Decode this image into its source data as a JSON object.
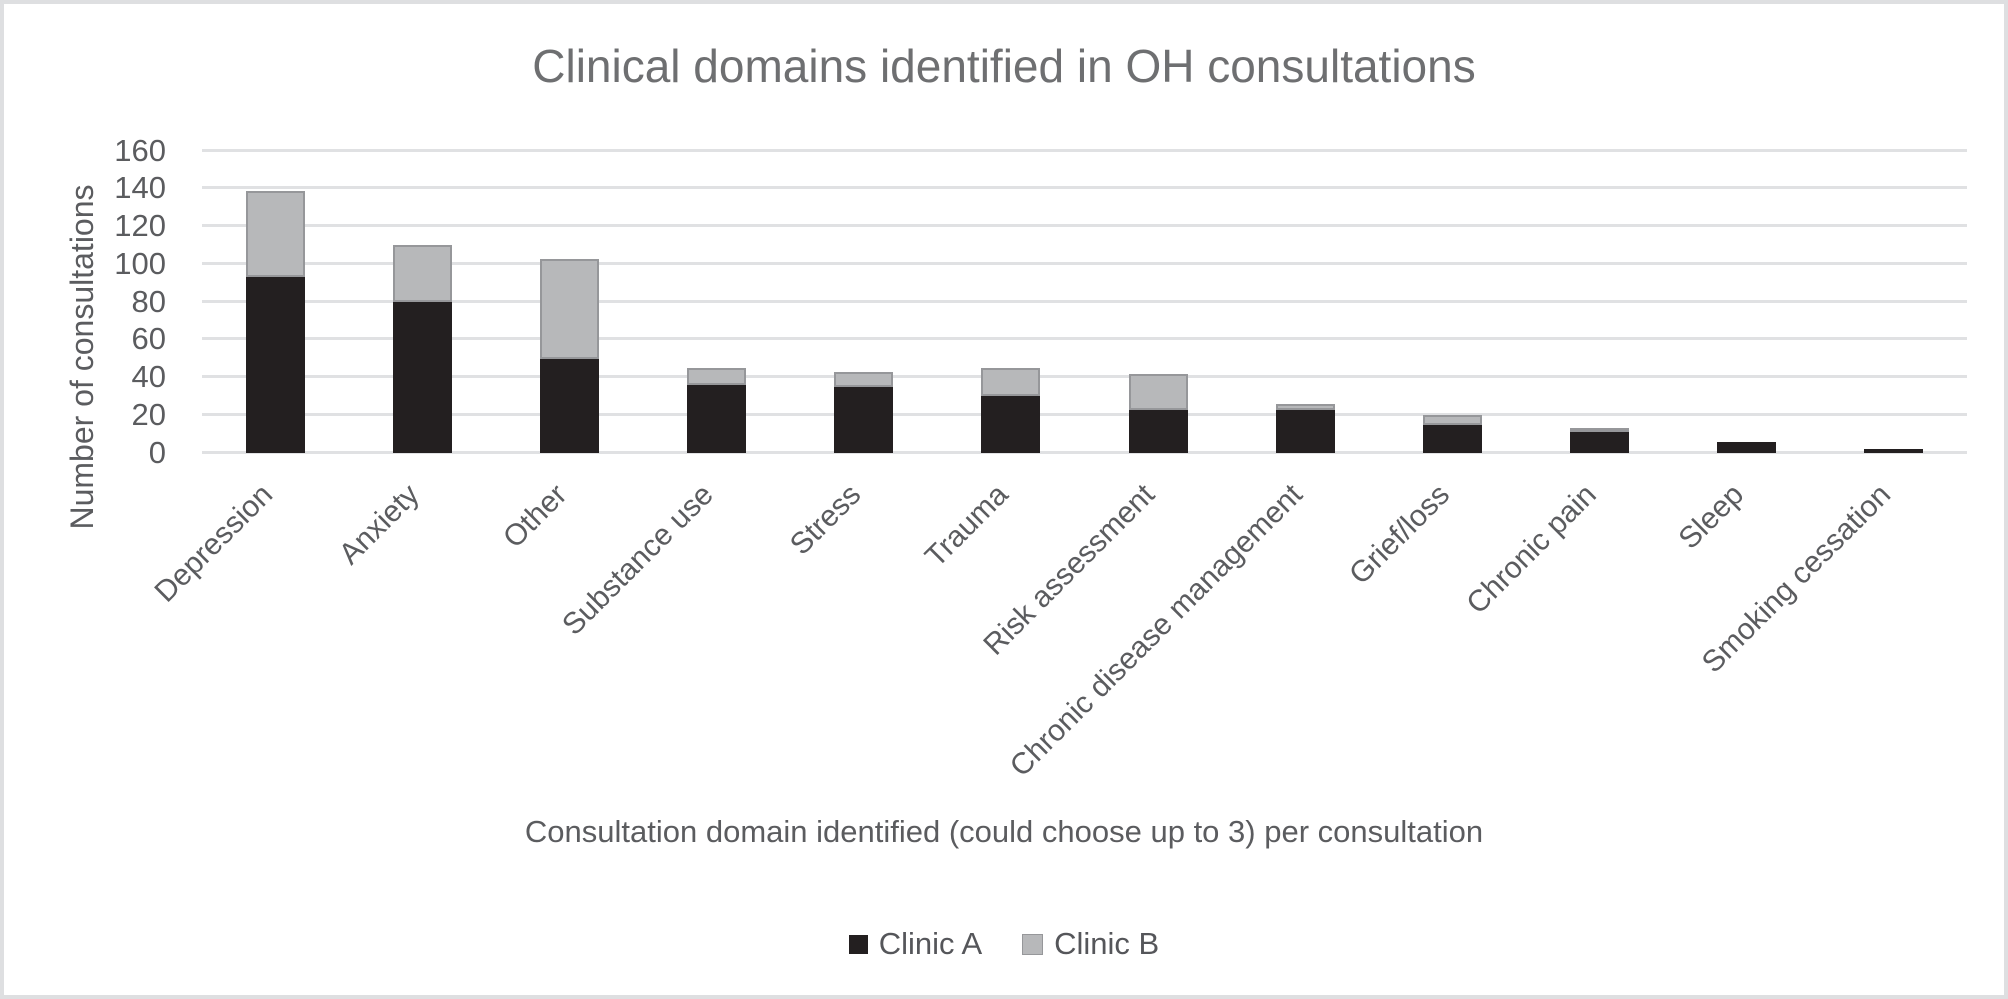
{
  "chart_data": {
    "type": "bar",
    "stacked": true,
    "title": "Clinical domains identified in OH consultations",
    "xlabel": "Consultation domain identified (could choose up to 3) per consultation",
    "ylabel": "Number of consultations",
    "ylim": [
      0,
      160
    ],
    "yticks": [
      0,
      20,
      40,
      60,
      80,
      100,
      120,
      140,
      160
    ],
    "grid": true,
    "legend_position": "bottom",
    "categories": [
      "Depression",
      "Anxiety",
      "Other",
      "Substance use",
      "Stress",
      "Trauma",
      "Risk assessment",
      "Chronic disease management",
      "Grief/loss",
      "Chronic pain",
      "Sleep",
      "Smoking cessation"
    ],
    "series": [
      {
        "name": "Clinic A",
        "color": "#231f20",
        "values": [
          93,
          80,
          50,
          36,
          35,
          30,
          23,
          23,
          15,
          11,
          6,
          2
        ]
      },
      {
        "name": "Clinic B",
        "color": "#b7b8ba",
        "values": [
          46,
          30,
          53,
          9,
          8,
          15,
          19,
          3,
          5,
          2,
          0,
          0
        ]
      }
    ],
    "totals": [
      139,
      110,
      103,
      45,
      43,
      45,
      42,
      26,
      20,
      13,
      6,
      2
    ]
  },
  "colors": {
    "gridline": "#e0e1e3",
    "axis_text": "#5b5c5f",
    "title_text": "#6e6f71",
    "frame_border": "#dedfe1",
    "background": "#ffffff",
    "clinic_b_border": "#96979a"
  }
}
